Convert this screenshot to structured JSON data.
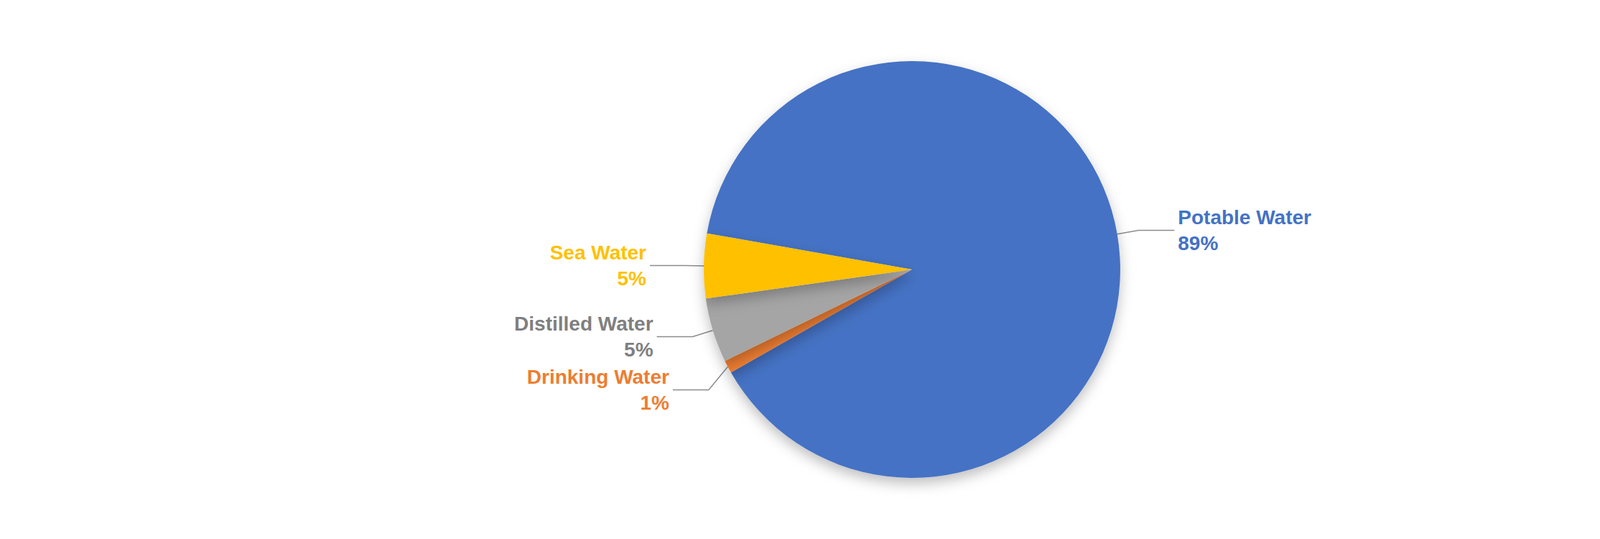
{
  "chart_data": {
    "type": "pie",
    "categories": [
      "Potable Water",
      "Drinking Water",
      "Distilled Water",
      "Sea Water"
    ],
    "values": [
      89,
      1,
      5,
      5
    ],
    "value_labels": [
      "89%",
      "1%",
      "5%",
      "5%"
    ],
    "colors": [
      "#4472c4",
      "#ed7d31",
      "#a5a5a5",
      "#ffc000"
    ],
    "data_labels": true
  }
}
